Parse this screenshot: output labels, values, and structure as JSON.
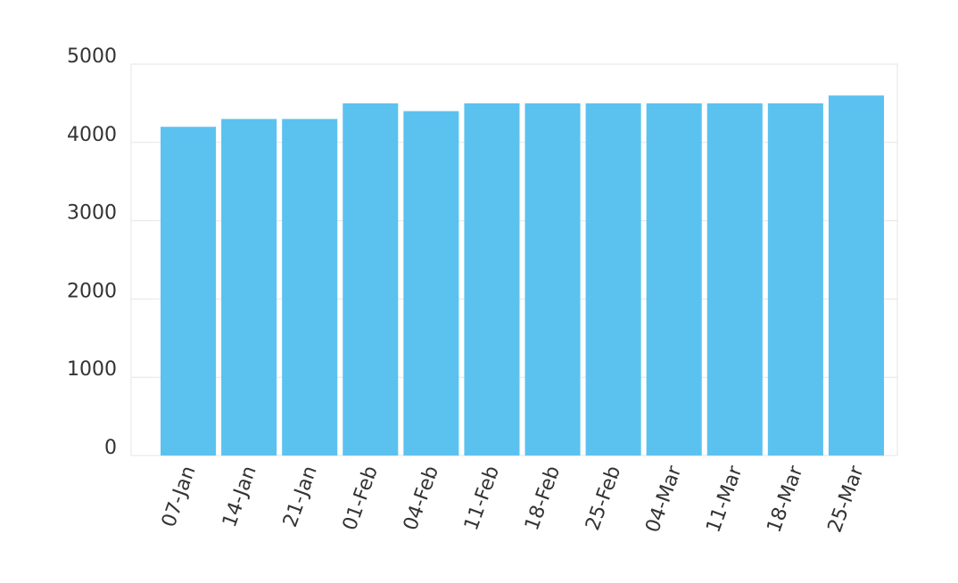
{
  "chart_data": {
    "type": "bar",
    "title": "",
    "xlabel": "",
    "ylabel": "",
    "categories": [
      "07-Jan",
      "14-Jan",
      "21-Jan",
      "01-Feb",
      "04-Feb",
      "11-Feb",
      "18-Feb",
      "25-Feb",
      "04-Mar",
      "11-Mar",
      "18-Mar",
      "25-Mar"
    ],
    "values": [
      4200,
      4300,
      4300,
      4500,
      4400,
      4500,
      4500,
      4500,
      4500,
      4500,
      4500,
      4600
    ],
    "ylim": [
      0,
      5000
    ],
    "yticks": [
      0,
      1000,
      2000,
      3000,
      4000,
      5000
    ],
    "grid": true,
    "legend": "none",
    "bar_color": "#5bc2f0"
  }
}
